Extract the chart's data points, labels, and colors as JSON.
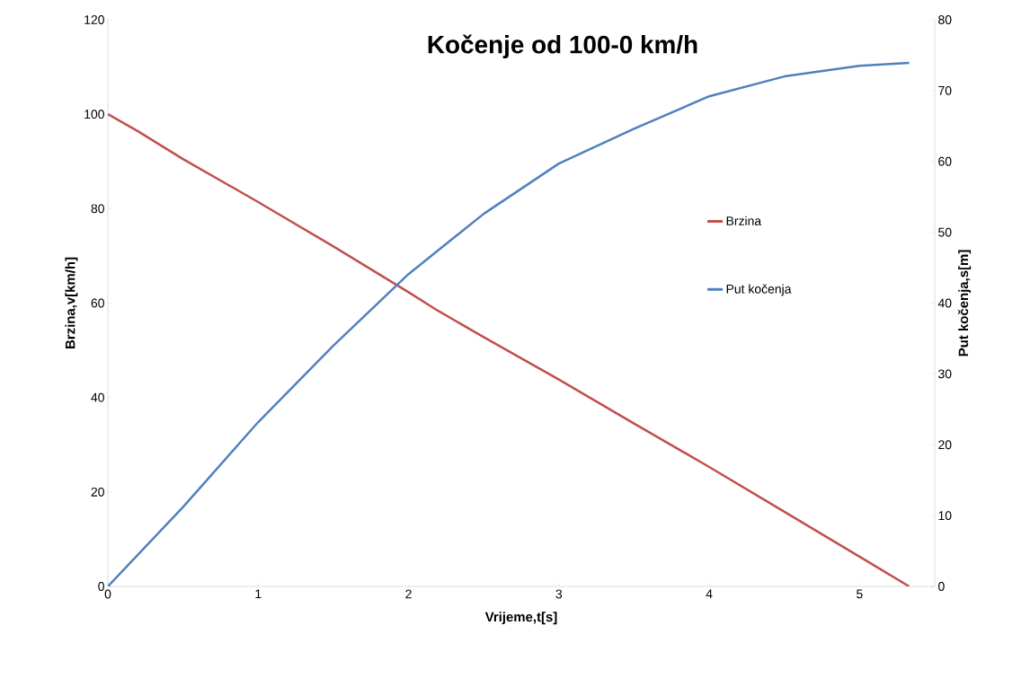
{
  "chart_data": {
    "type": "line",
    "title": "Kočenje od 100-0 km/h",
    "xlabel": "Vrijeme,t[s]",
    "ylabel": "Brzina,v[km/h]",
    "y2label": "Put kočenja,s[m]",
    "xlim": [
      0,
      5.5
    ],
    "xticks": [
      0,
      1,
      2,
      3,
      4,
      5
    ],
    "ylim": [
      0,
      120
    ],
    "yticks": [
      0,
      20,
      40,
      60,
      80,
      100,
      120
    ],
    "y2lim": [
      0,
      80
    ],
    "y2ticks": [
      0,
      10,
      20,
      30,
      40,
      50,
      60,
      70,
      80
    ],
    "grid": false,
    "legend": "right",
    "marker": "none",
    "line_style": "solid",
    "series": [
      {
        "name": "Brzina",
        "color": "#c0504d",
        "x": [
          0,
          0.2,
          0.5,
          1,
          1.5,
          2,
          2.2,
          2.5,
          3,
          3.5,
          4,
          4.5,
          5,
          5.33
        ],
        "values": [
          100,
          96.4,
          90.5,
          81.4,
          72,
          62.3,
          58.3,
          52.8,
          43.8,
          34.5,
          25.3,
          15.8,
          6.3,
          0
        ]
      },
      {
        "name": "Put kočenja",
        "color": "#4f81bd",
        "axis": "y2",
        "x": [
          0,
          0.5,
          1,
          1.5,
          2,
          2.5,
          3,
          3.5,
          4,
          4.5,
          5,
          5.33
        ],
        "values": [
          0,
          11.2,
          23.2,
          34,
          44.1,
          52.6,
          59.7,
          64.6,
          69.2,
          72,
          73.5,
          73.9
        ]
      }
    ]
  }
}
